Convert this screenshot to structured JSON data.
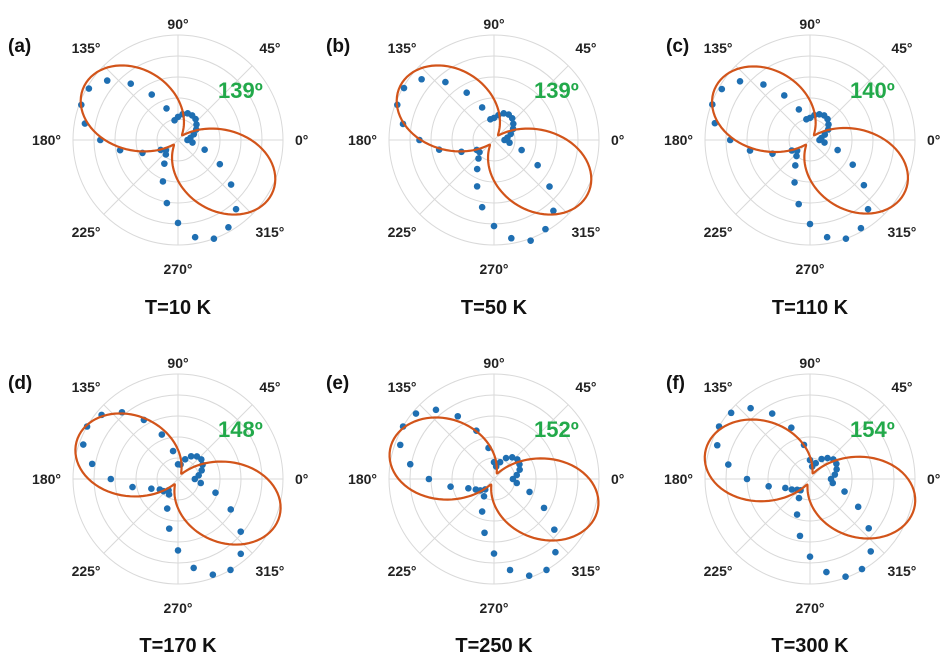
{
  "colors": {
    "grid": "#d9d9d9",
    "points": "#1f6fb2",
    "fit": "#d2541a",
    "annotation": "#22a94a",
    "text": "#111111"
  },
  "chart_data": [
    {
      "type": "scatter",
      "projection": "polar",
      "panel_label": "(a)",
      "title": "T=10 K",
      "annotation": "139º",
      "theta_ticks": [
        "0°",
        "45°",
        "90°",
        "135°",
        "180°",
        "225°",
        "270°",
        "315°"
      ],
      "grid": true,
      "fit_angle_deg": 139,
      "series": [
        {
          "type": "scatter",
          "theta_step_deg": 10,
          "theta_start_deg": 0,
          "r": [
            0.09,
            0.12,
            0.16,
            0.2,
            0.23,
            0.26,
            0.27,
            0.27,
            0.25,
            0.22,
            0.19,
            0.32,
            0.5,
            0.7,
            0.88,
            0.98,
            0.98,
            0.9,
            0.74,
            0.56,
            0.36,
            0.19,
            0.15,
            0.18,
            0.26,
            0.42,
            0.61,
            0.79,
            0.94,
            1.0,
            0.96,
            0.86,
            0.66,
            0.46,
            0.27,
            0.14
          ]
        },
        {
          "type": "line",
          "model": "two-lobe (1+cos2(θ-θ0))/2 + 0.18 sin2(θ-θ0)",
          "theta0_deg": 139
        }
      ]
    },
    {
      "type": "scatter",
      "projection": "polar",
      "panel_label": "(b)",
      "title": "T=50 K",
      "annotation": "139º",
      "theta_ticks": [
        "0°",
        "45°",
        "90°",
        "135°",
        "180°",
        "225°",
        "270°",
        "315°"
      ],
      "grid": true,
      "fit_angle_deg": 139,
      "series": [
        {
          "type": "scatter",
          "theta_step_deg": 10,
          "theta_start_deg": 0,
          "r": [
            0.1,
            0.13,
            0.17,
            0.21,
            0.24,
            0.27,
            0.28,
            0.27,
            0.24,
            0.21,
            0.2,
            0.33,
            0.52,
            0.72,
            0.9,
            0.99,
            0.98,
            0.88,
            0.71,
            0.53,
            0.33,
            0.19,
            0.18,
            0.23,
            0.32,
            0.47,
            0.65,
            0.82,
            0.95,
            1.02,
            0.98,
            0.88,
            0.69,
            0.48,
            0.28,
            0.15
          ]
        },
        {
          "type": "line",
          "theta0_deg": 139
        }
      ]
    },
    {
      "type": "scatter",
      "projection": "polar",
      "panel_label": "(c)",
      "title": "T=110 K",
      "annotation": "140º",
      "theta_ticks": [
        "0°",
        "45°",
        "90°",
        "135°",
        "180°",
        "225°",
        "270°",
        "315°"
      ],
      "grid": true,
      "fit_angle_deg": 140,
      "series": [
        {
          "type": "scatter",
          "theta_step_deg": 10,
          "theta_start_deg": 0,
          "r": [
            0.09,
            0.11,
            0.15,
            0.2,
            0.23,
            0.26,
            0.27,
            0.26,
            0.24,
            0.21,
            0.2,
            0.31,
            0.49,
            0.69,
            0.87,
            0.97,
            0.99,
            0.92,
            0.76,
            0.58,
            0.38,
            0.2,
            0.16,
            0.2,
            0.28,
            0.43,
            0.62,
            0.8,
            0.94,
            1.0,
            0.97,
            0.86,
            0.67,
            0.47,
            0.28,
            0.14
          ]
        },
        {
          "type": "line",
          "theta0_deg": 140
        }
      ]
    },
    {
      "type": "scatter",
      "projection": "polar",
      "panel_label": "(d)",
      "title": "T=170 K",
      "annotation": "148º",
      "theta_ticks": [
        "0°",
        "45°",
        "90°",
        "135°",
        "180°",
        "225°",
        "270°",
        "315°"
      ],
      "grid": true,
      "fit_angle_deg": 148,
      "series": [
        {
          "type": "scatter",
          "theta_step_deg": 10,
          "theta_start_deg": 0,
          "r": [
            0.16,
            0.2,
            0.24,
            0.27,
            0.29,
            0.28,
            0.25,
            0.2,
            0.14,
            0.14,
            0.27,
            0.45,
            0.65,
            0.83,
            0.95,
            1.0,
            0.96,
            0.83,
            0.64,
            0.44,
            0.27,
            0.2,
            0.18,
            0.14,
            0.17,
            0.3,
            0.48,
            0.68,
            0.86,
            0.97,
            1.0,
            0.93,
            0.78,
            0.58,
            0.38,
            0.22
          ]
        },
        {
          "type": "line",
          "theta0_deg": 148
        }
      ]
    },
    {
      "type": "scatter",
      "projection": "polar",
      "panel_label": "(e)",
      "title": "T=250 K",
      "annotation": "152º",
      "theta_ticks": [
        "0°",
        "45°",
        "90°",
        "135°",
        "180°",
        "225°",
        "270°",
        "315°"
      ],
      "grid": true,
      "fit_angle_deg": 152,
      "series": [
        {
          "type": "scatter",
          "theta_step_deg": 10,
          "theta_start_deg": 0,
          "r": [
            0.18,
            0.22,
            0.26,
            0.28,
            0.29,
            0.27,
            0.23,
            0.17,
            0.12,
            0.16,
            0.3,
            0.49,
            0.69,
            0.86,
            0.97,
            1.0,
            0.95,
            0.81,
            0.62,
            0.42,
            0.26,
            0.2,
            0.17,
            0.13,
            0.19,
            0.33,
            0.52,
            0.71,
            0.88,
            0.98,
            1.0,
            0.91,
            0.75,
            0.55,
            0.36,
            0.22
          ]
        },
        {
          "type": "line",
          "theta0_deg": 152
        }
      ]
    },
    {
      "type": "scatter",
      "projection": "polar",
      "panel_label": "(f)",
      "title": "T=300 K",
      "annotation": "154º",
      "theta_ticks": [
        "0°",
        "45°",
        "90°",
        "135°",
        "180°",
        "225°",
        "270°",
        "315°"
      ],
      "grid": true,
      "fit_angle_deg": 154,
      "series": [
        {
          "type": "scatter",
          "theta_step_deg": 10,
          "theta_start_deg": 0,
          "r": [
            0.2,
            0.24,
            0.27,
            0.29,
            0.29,
            0.26,
            0.22,
            0.16,
            0.12,
            0.18,
            0.33,
            0.52,
            0.72,
            0.88,
            0.98,
            1.0,
            0.94,
            0.79,
            0.6,
            0.4,
            0.25,
            0.2,
            0.16,
            0.14,
            0.21,
            0.36,
            0.55,
            0.74,
            0.9,
            0.99,
            0.99,
            0.9,
            0.73,
            0.53,
            0.35,
            0.22
          ]
        },
        {
          "type": "line",
          "theta0_deg": 154
        }
      ]
    }
  ]
}
